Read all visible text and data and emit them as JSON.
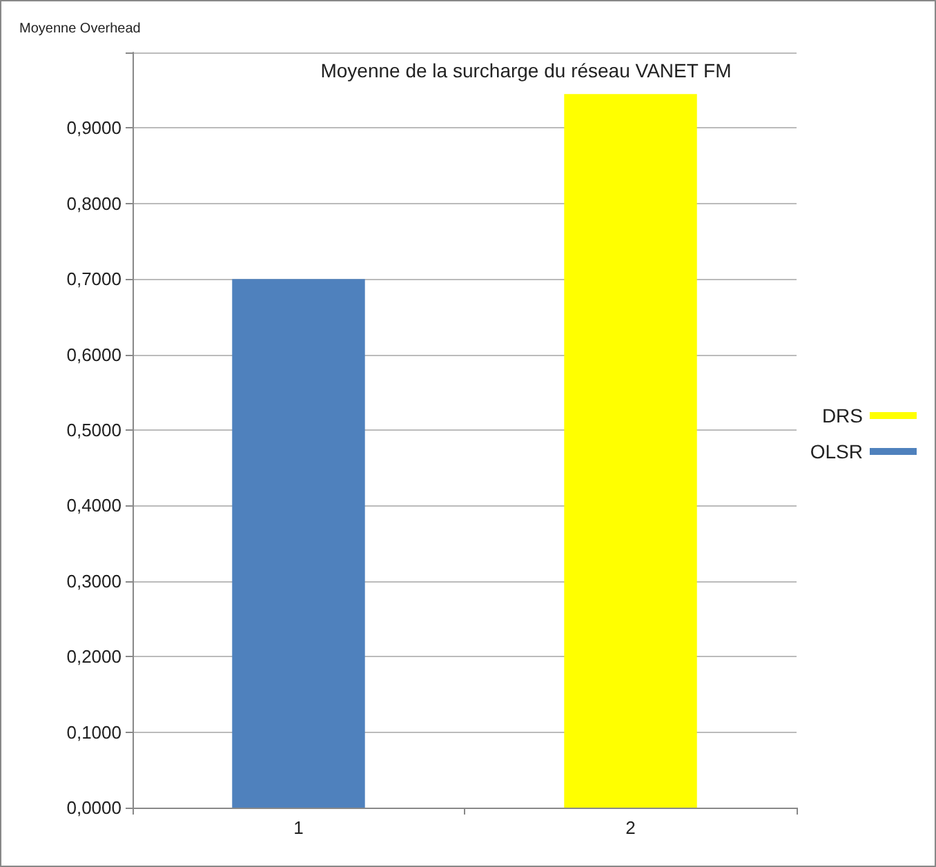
{
  "chart_data": {
    "type": "bar",
    "title": "Moyenne de la surcharge du réseau VANET FM",
    "ylabel": "Moyenne Overhead",
    "categories": [
      "1",
      "2"
    ],
    "series": [
      {
        "name": "DRS",
        "color": "#ffff00",
        "values": [
          null,
          0.945
        ]
      },
      {
        "name": "OLSR",
        "color": "#4f81bd",
        "values": [
          0.7,
          null
        ]
      }
    ],
    "ylim": [
      0,
      1
    ],
    "yticks": [
      {
        "value": 0,
        "label": "0,0000"
      },
      {
        "value": 0.1,
        "label": "0,1000"
      },
      {
        "value": 0.2,
        "label": "0,2000"
      },
      {
        "value": 0.3,
        "label": "0,3000"
      },
      {
        "value": 0.4,
        "label": "0,4000"
      },
      {
        "value": 0.5,
        "label": "0,5000"
      },
      {
        "value": 0.6,
        "label": "0,6000"
      },
      {
        "value": 0.7,
        "label": "0,7000"
      },
      {
        "value": 0.8,
        "label": "0,8000"
      },
      {
        "value": 0.9,
        "label": "0,9000"
      },
      {
        "value": 1,
        "label": null
      }
    ],
    "grid": "y",
    "legend": "right"
  }
}
